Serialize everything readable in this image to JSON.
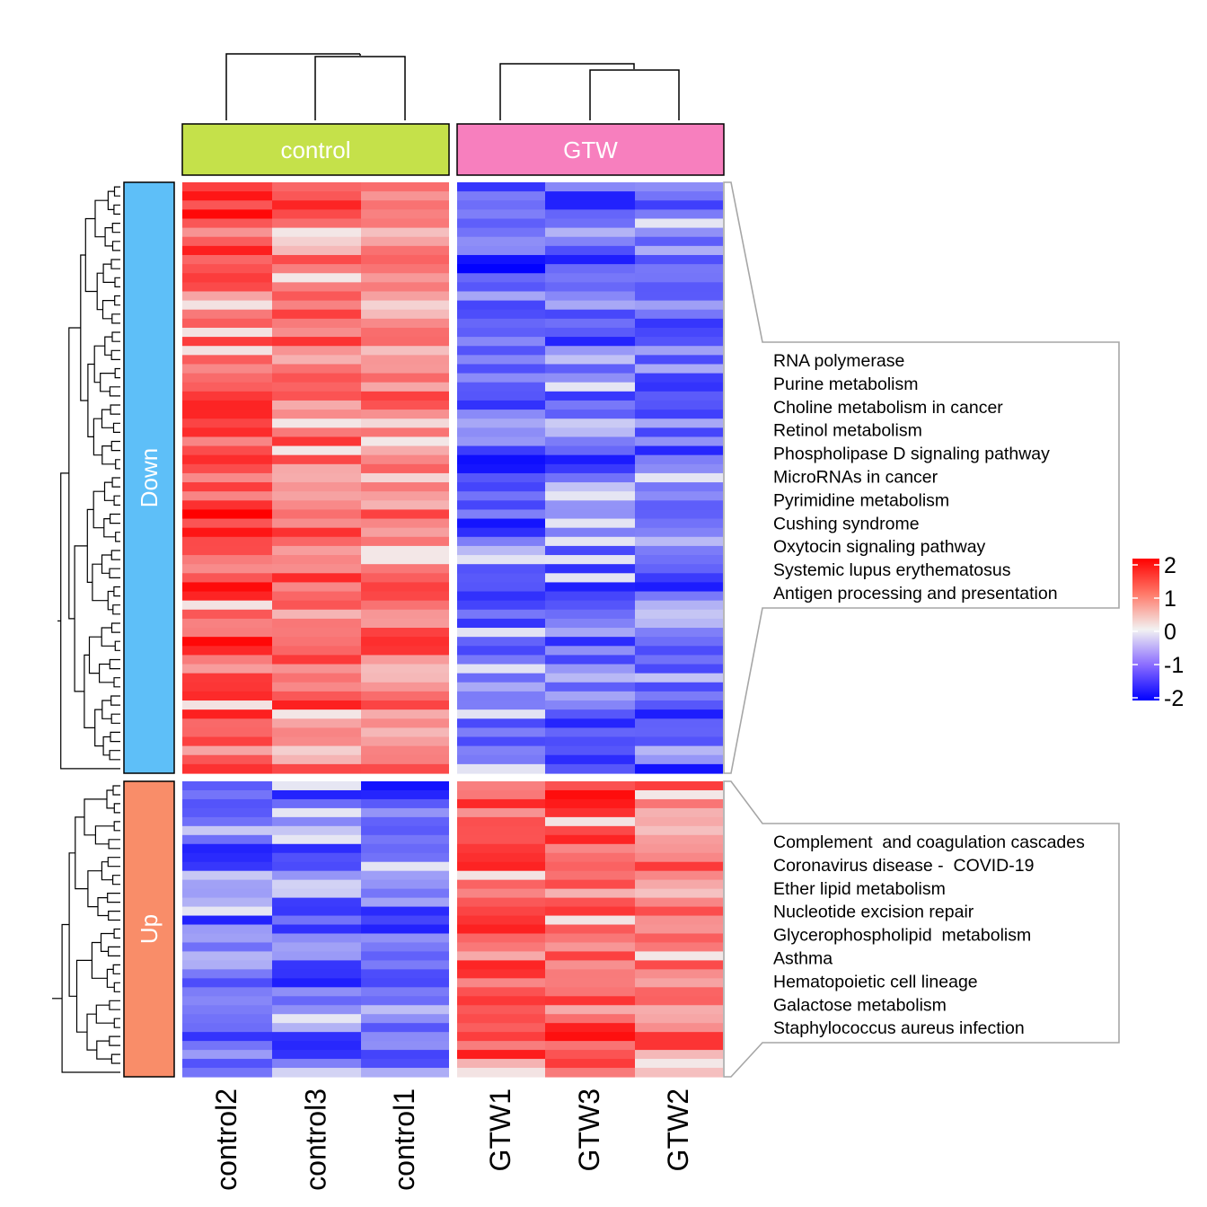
{
  "chart_data": {
    "type": "heatmap",
    "title": "",
    "column_groups": [
      {
        "label": "control",
        "color": "#C5E14A",
        "columns": [
          "control2",
          "control3",
          "control1"
        ]
      },
      {
        "label": "GTW",
        "color": "#F77FBE",
        "columns": [
          "GTW1",
          "GTW3",
          "GTW2"
        ]
      }
    ],
    "row_groups": [
      {
        "label": "Down",
        "color": "#5EBFF8",
        "row_count": 65,
        "column_means": {
          "control2": 1.3,
          "control3": 1.0,
          "control1": 0.9,
          "GTW1": -1.2,
          "GTW3": -1.1,
          "GTW2": -1.1
        },
        "pathways": [
          "RNA polymerase",
          "Purine metabolism",
          "Choline metabolism in cancer",
          "Retinol metabolism",
          "Phospholipase D signaling pathway",
          "MicroRNAs in cancer",
          "Pyrimidine metabolism",
          "Cushing syndrome",
          "Oxytocin signaling pathway",
          "Systemic lupus erythematosus",
          "Antigen processing and presentation"
        ]
      },
      {
        "label": "Up",
        "color": "#F98D69",
        "row_count": 33,
        "column_means": {
          "control2": -1.0,
          "control3": -1.0,
          "control1": -1.1,
          "GTW1": 1.2,
          "GTW3": 1.2,
          "GTW2": 0.9
        },
        "pathways": [
          "Complement  and coagulation cascades",
          "Coronavirus disease -  COVID-19",
          "Ether lipid metabolism",
          "Nucleotide excision repair",
          "Glycerophospholipid  metabolism",
          "Asthma",
          "Hematopoietic cell lineage",
          "Galactose metabolism",
          "Staphylococcus aureus infection"
        ]
      }
    ],
    "color_scale": {
      "min": -2,
      "max": 2,
      "low_color": "#0000FF",
      "mid_color": "#FFFFFF",
      "high_color": "#FF0000",
      "ticks": [
        "2",
        "1",
        "0",
        "-1",
        "-2"
      ]
    },
    "legend": "right"
  }
}
